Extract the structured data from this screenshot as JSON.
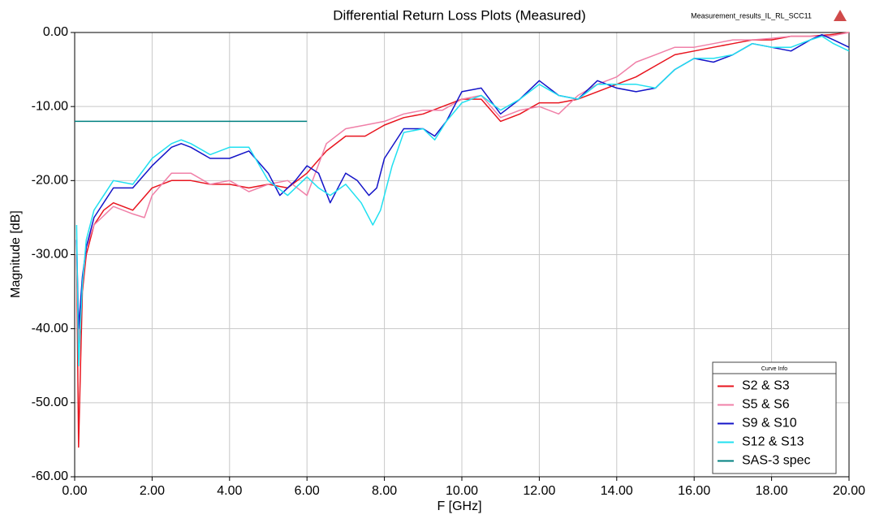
{
  "chart_data": {
    "type": "line",
    "title": "Differential Return Loss Plots (Measured)",
    "subtitle": "Measurement_results_IL_RL_SCC11",
    "xlabel": "F [GHz]",
    "ylabel": "Magnitude [dB]",
    "legend_title": "Curve Info",
    "legend": "lower right",
    "grid": true,
    "xlim": [
      0,
      20
    ],
    "ylim": [
      -60,
      0
    ],
    "xticks": [
      {
        "value": 0,
        "label": "0.00"
      },
      {
        "value": 2,
        "label": "2.00"
      },
      {
        "value": 4,
        "label": "4.00"
      },
      {
        "value": 6,
        "label": "6.00"
      },
      {
        "value": 8,
        "label": "8.00"
      },
      {
        "value": 10,
        "label": "10.00"
      },
      {
        "value": 12,
        "label": "12.00"
      },
      {
        "value": 14,
        "label": "14.00"
      },
      {
        "value": 16,
        "label": "16.00"
      },
      {
        "value": 18,
        "label": "18.00"
      },
      {
        "value": 20,
        "label": "20.00"
      }
    ],
    "yticks": [
      {
        "value": 0,
        "label": "0.00"
      },
      {
        "value": -10,
        "label": "-10.00"
      },
      {
        "value": -20,
        "label": "-20.00"
      },
      {
        "value": -30,
        "label": "-30.00"
      },
      {
        "value": -40,
        "label": "-40.00"
      },
      {
        "value": -50,
        "label": "-50.00"
      },
      {
        "value": -60,
        "label": "-60.00"
      }
    ],
    "series": [
      {
        "name": "S2 & S3",
        "color": "#e8141e",
        "x": [
          0.05,
          0.1,
          0.15,
          0.2,
          0.3,
          0.5,
          0.75,
          1.0,
          1.5,
          2.0,
          2.5,
          3.0,
          3.5,
          4.0,
          4.5,
          5.0,
          5.5,
          6.0,
          6.5,
          7.0,
          7.5,
          8.0,
          8.5,
          9.0,
          9.5,
          10.0,
          10.5,
          11.0,
          11.5,
          12.0,
          12.5,
          13.0,
          13.5,
          14.0,
          14.5,
          15.0,
          15.5,
          16.0,
          16.5,
          17.0,
          17.5,
          18.0,
          18.5,
          19.0,
          19.5,
          20.0
        ],
        "values": [
          -30,
          -56,
          -45,
          -35,
          -30,
          -26,
          -24,
          -23,
          -24,
          -21,
          -20,
          -20,
          -20.5,
          -20.5,
          -21,
          -20.5,
          -21,
          -19,
          -16,
          -14,
          -14,
          -12.5,
          -11.5,
          -11,
          -10,
          -9,
          -9,
          -12,
          -11,
          -9.5,
          -9.5,
          -9,
          -8,
          -7,
          -6,
          -4.5,
          -3,
          -2.5,
          -2,
          -1.5,
          -1,
          -1,
          -0.5,
          -0.5,
          -0.3,
          0
        ]
      },
      {
        "name": "S5 & S6",
        "color": "#f080a8",
        "x": [
          0.05,
          0.1,
          0.2,
          0.3,
          0.5,
          1.0,
          1.5,
          1.8,
          2.0,
          2.5,
          3.0,
          3.5,
          4.0,
          4.5,
          5.0,
          5.5,
          6.0,
          6.5,
          7.0,
          7.5,
          8.0,
          8.5,
          9.0,
          9.5,
          10.0,
          10.5,
          11.0,
          11.5,
          12.0,
          12.5,
          13.0,
          13.5,
          14.0,
          14.5,
          15.0,
          15.5,
          16.0,
          16.5,
          17.0,
          17.5,
          18.0,
          18.5,
          19.0,
          19.5,
          20.0
        ],
        "values": [
          -30,
          -42,
          -34,
          -29,
          -26,
          -23.5,
          -24.5,
          -25,
          -22,
          -19,
          -19,
          -20.5,
          -20,
          -21.5,
          -20.5,
          -20,
          -22,
          -15,
          -13,
          -12.5,
          -12,
          -11,
          -10.5,
          -10.5,
          -9,
          -8.5,
          -11.5,
          -10.5,
          -10,
          -11,
          -8.5,
          -7,
          -6,
          -4,
          -3,
          -2,
          -2,
          -1.5,
          -1,
          -1,
          -0.8,
          -0.5,
          -0.5,
          -0.5,
          0
        ]
      },
      {
        "name": "S9 & S10",
        "color": "#1414c8",
        "x": [
          0.05,
          0.1,
          0.2,
          0.3,
          0.5,
          1.0,
          1.5,
          2.0,
          2.5,
          2.75,
          3.0,
          3.5,
          4.0,
          4.5,
          5.0,
          5.3,
          5.7,
          6.0,
          6.3,
          6.6,
          7.0,
          7.3,
          7.6,
          7.8,
          8.0,
          8.5,
          9.0,
          9.3,
          9.6,
          10.0,
          10.5,
          11.0,
          11.5,
          12.0,
          12.5,
          13.0,
          13.5,
          14.0,
          14.5,
          15.0,
          15.5,
          16.0,
          16.5,
          17.0,
          17.5,
          18.0,
          18.5,
          19.0,
          19.3,
          19.6,
          20.0
        ],
        "values": [
          -28,
          -40,
          -33,
          -29,
          -25,
          -21,
          -21,
          -18,
          -15.5,
          -15,
          -15.5,
          -17,
          -17,
          -16,
          -19,
          -22,
          -20,
          -18,
          -19,
          -23,
          -19,
          -20,
          -22,
          -21,
          -17,
          -13,
          -13,
          -14,
          -12,
          -8,
          -7.5,
          -11,
          -9,
          -6.5,
          -8.5,
          -9,
          -6.5,
          -7.5,
          -8,
          -7.5,
          -5,
          -3.5,
          -4,
          -3,
          -1.5,
          -2,
          -2.5,
          -1,
          -0.3,
          -1,
          -2
        ]
      },
      {
        "name": "S12 & S13",
        "color": "#20e0f0",
        "x": [
          0.05,
          0.1,
          0.2,
          0.3,
          0.5,
          1.0,
          1.5,
          2.0,
          2.5,
          2.75,
          3.0,
          3.5,
          4.0,
          4.5,
          5.0,
          5.5,
          6.0,
          6.3,
          6.6,
          7.0,
          7.4,
          7.7,
          7.9,
          8.2,
          8.5,
          9.0,
          9.3,
          9.6,
          10.0,
          10.5,
          11.0,
          11.5,
          12.0,
          12.5,
          13.0,
          13.5,
          14.0,
          14.5,
          15.0,
          15.5,
          16.0,
          16.5,
          17.0,
          17.5,
          18.0,
          18.5,
          19.0,
          19.3,
          19.6,
          20.0
        ],
        "values": [
          -26,
          -45,
          -34,
          -28,
          -24,
          -20,
          -20.5,
          -17,
          -15,
          -14.5,
          -15,
          -16.5,
          -15.5,
          -15.5,
          -20,
          -22,
          -19.5,
          -21,
          -22,
          -20.5,
          -23,
          -26,
          -24,
          -18,
          -13.5,
          -13,
          -14.5,
          -12,
          -9.5,
          -8.5,
          -10.5,
          -9,
          -7,
          -8.5,
          -9,
          -7,
          -7,
          -7,
          -7.5,
          -5,
          -3.5,
          -3.5,
          -3,
          -1.5,
          -2,
          -2,
          -1,
          -0.5,
          -1.5,
          -2.5
        ]
      },
      {
        "name": "SAS-3 spec",
        "color": "#008080",
        "x": [
          0,
          6
        ],
        "values": [
          -12,
          -12
        ]
      }
    ]
  }
}
